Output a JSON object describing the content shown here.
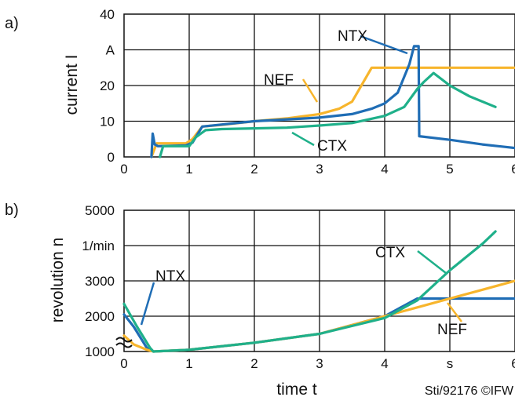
{
  "chart_data": [
    {
      "panel_label": "a)",
      "type": "line",
      "ylabel": "current I",
      "xlim": [
        0,
        6
      ],
      "ylim": [
        0,
        40
      ],
      "x_ticks": [
        "0",
        "1",
        "2",
        "3",
        "4",
        "5",
        "6"
      ],
      "y_ticks": [
        "0",
        "10",
        "20",
        "A",
        "40"
      ],
      "grid": true,
      "colors": {
        "NTX": "#1f6db5",
        "NEF": "#f7b52c",
        "CTX": "#1fb08a"
      },
      "series": [
        {
          "name": "NEF",
          "x": [
            0.42,
            0.5,
            0.95,
            1.05,
            1.2,
            1.5,
            2,
            2.5,
            3,
            3.3,
            3.5,
            3.8,
            4.2,
            4.6,
            5,
            5.5,
            6
          ],
          "y": [
            0,
            3.8,
            3.8,
            5,
            8.5,
            9,
            10,
            10.8,
            12,
            13.5,
            15.5,
            25,
            25,
            25,
            25,
            25,
            25
          ]
        },
        {
          "name": "NTX",
          "x": [
            0.42,
            0.44,
            0.47,
            0.52,
            0.95,
            1.05,
            1.2,
            2,
            3,
            3.5,
            3.8,
            4,
            4.2,
            4.38,
            4.45,
            4.52,
            4.53,
            5,
            5.5,
            6
          ],
          "y": [
            0,
            6.5,
            3.5,
            3,
            3.2,
            4,
            8.5,
            10,
            11,
            12,
            13.5,
            15,
            18,
            26,
            31,
            31,
            5.8,
            4.8,
            3.5,
            2.5
          ]
        },
        {
          "name": "CTX",
          "x": [
            0.55,
            0.6,
            1,
            1.1,
            1.25,
            1.5,
            2,
            2.5,
            3,
            3.5,
            4,
            4.3,
            4.5,
            4.6,
            4.75,
            5,
            5.3,
            5.7
          ],
          "y": [
            0,
            3,
            3,
            5.5,
            7.5,
            7.8,
            8,
            8.2,
            8.8,
            9.5,
            11.5,
            14,
            19,
            21,
            23.5,
            20,
            17,
            14
          ]
        }
      ],
      "annotations": [
        "NTX",
        "NEF",
        "CTX"
      ]
    },
    {
      "panel_label": "b)",
      "type": "line",
      "ylabel": "revolution n",
      "xlabel": "time t",
      "xlim": [
        0,
        6
      ],
      "ylim": [
        1000,
        5000
      ],
      "x_ticks": [
        "0",
        "1",
        "2",
        "3",
        "4",
        "s",
        "6"
      ],
      "y_ticks": [
        "1000",
        "2000",
        "3000",
        "1/min",
        "5000"
      ],
      "grid": true,
      "colors": {
        "NTX": "#1f6db5",
        "NEF": "#f7b52c",
        "CTX": "#1fb08a"
      },
      "series": [
        {
          "name": "NTX",
          "x": [
            0,
            0.15,
            0.35,
            0.45,
            1,
            2,
            3,
            4,
            4.3,
            4.5,
            4.55,
            5,
            5.5,
            6
          ],
          "y": [
            2050,
            1700,
            1100,
            1000,
            1050,
            1250,
            1500,
            2000,
            2300,
            2500,
            2500,
            2500,
            2500,
            2500
          ]
        },
        {
          "name": "NEF",
          "x": [
            0,
            0.15,
            0.35,
            0.45,
            1,
            2,
            3,
            4,
            4.5,
            5,
            5.5,
            6
          ],
          "y": [
            1450,
            1200,
            1050,
            1000,
            1050,
            1250,
            1500,
            2000,
            2250,
            2500,
            2750,
            3000
          ]
        },
        {
          "name": "CTX",
          "x": [
            0,
            0.2,
            0.4,
            0.45,
            1,
            2,
            3,
            4,
            4.5,
            5,
            5.5,
            5.7
          ],
          "y": [
            2350,
            1700,
            1100,
            1000,
            1050,
            1250,
            1500,
            1950,
            2450,
            3300,
            4050,
            4400
          ]
        }
      ],
      "annotations": [
        "NTX",
        "CTX",
        "NEF"
      ]
    }
  ],
  "credit": "Sti/92176 ©IFW"
}
